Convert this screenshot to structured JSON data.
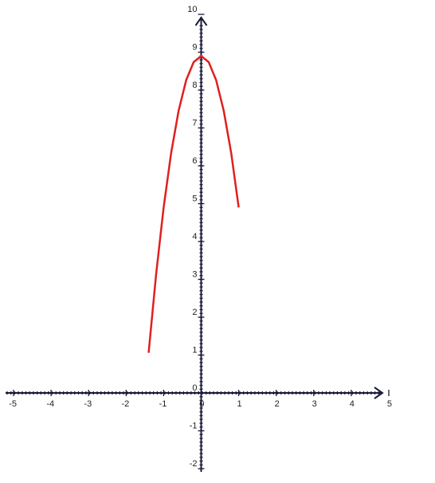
{
  "chart_data": {
    "type": "line",
    "x": [
      -1.4,
      -1.2,
      -1.0,
      -0.8,
      -0.6,
      -0.4,
      -0.2,
      0,
      0.2,
      0.4,
      0.6,
      0.8,
      1.0
    ],
    "values": [
      1.06,
      3.14,
      4.9,
      6.34,
      7.46,
      8.26,
      8.74,
      8.9,
      8.74,
      8.26,
      7.46,
      6.34,
      4.9
    ],
    "color": "#e0201e",
    "xlim": [
      -5,
      5
    ],
    "ylim": [
      -2,
      10
    ],
    "xticks": [
      -5,
      -4,
      -3,
      -2,
      -1,
      0,
      1,
      2,
      3,
      4,
      5
    ],
    "yticks": [
      -2,
      -1,
      0,
      1,
      2,
      3,
      4,
      5,
      6,
      7,
      8,
      9,
      10
    ],
    "grid": false
  }
}
